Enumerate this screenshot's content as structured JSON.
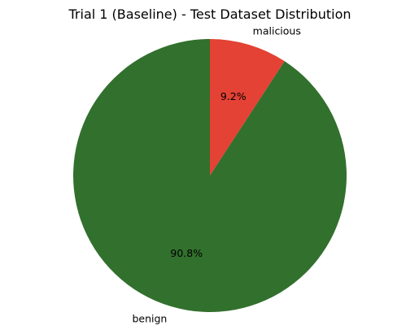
{
  "chart_data": {
    "type": "pie",
    "title": "Trial 1 (Baseline) - Test Dataset Distribution",
    "slices": [
      {
        "label": "malicious",
        "value": 9.2,
        "pct_label": "9.2%",
        "color": "#e34234"
      },
      {
        "label": "benign",
        "value": 90.8,
        "pct_label": "90.8%",
        "color": "#32702d"
      }
    ],
    "start_angle_deg": 90,
    "direction": "clockwise",
    "legend": "none"
  }
}
